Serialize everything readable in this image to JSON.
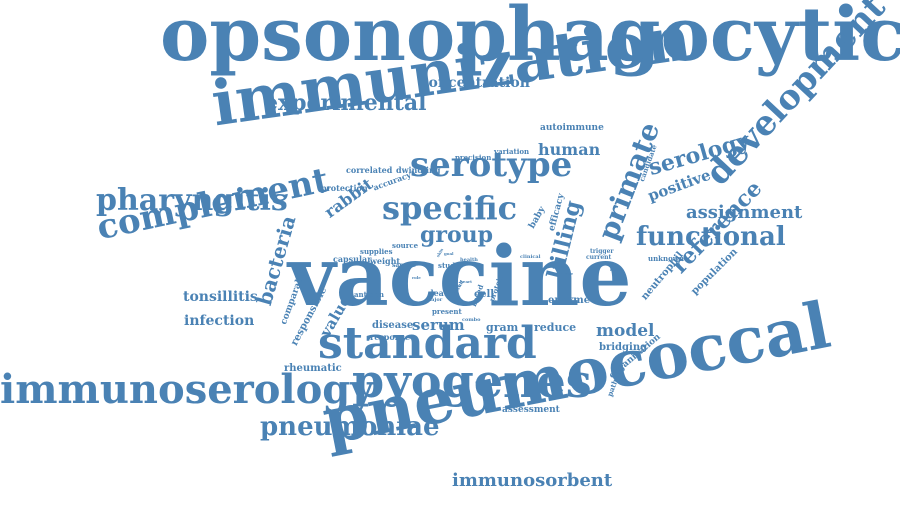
{
  "color": "#4a82b4",
  "words": [
    {
      "text": "opsonophagocytic"
    },
    {
      "text": "immunization"
    },
    {
      "text": "vaccine"
    },
    {
      "text": "pneumococcal"
    },
    {
      "text": "standard"
    },
    {
      "text": "pyogenes"
    },
    {
      "text": "immunoserology"
    },
    {
      "text": "development"
    },
    {
      "text": "complement"
    },
    {
      "text": "serotype"
    },
    {
      "text": "specific"
    },
    {
      "text": "pharyngitis"
    },
    {
      "text": "functional"
    },
    {
      "text": "primate"
    },
    {
      "text": "reference"
    },
    {
      "text": "pneumoniae"
    },
    {
      "text": "experimental"
    },
    {
      "text": "group"
    },
    {
      "text": "killing"
    },
    {
      "text": "serology"
    },
    {
      "text": "assignment"
    },
    {
      "text": "immunosorbent"
    },
    {
      "text": "bacteria"
    },
    {
      "text": "tonsillitis"
    },
    {
      "text": "infection"
    },
    {
      "text": "model"
    },
    {
      "text": "serum"
    },
    {
      "text": "positive"
    },
    {
      "text": "human"
    },
    {
      "text": "concentration"
    },
    {
      "text": "rabbit"
    },
    {
      "text": "value"
    },
    {
      "text": "rheumatic"
    },
    {
      "text": "enzyme"
    },
    {
      "text": "neutrophil"
    },
    {
      "text": "population"
    },
    {
      "text": "bridging"
    },
    {
      "text": "organization"
    },
    {
      "text": "assessment"
    },
    {
      "text": "gram"
    },
    {
      "text": "reduce"
    },
    {
      "text": "disease"
    },
    {
      "text": "response"
    },
    {
      "text": "responsible"
    },
    {
      "text": "comparable"
    },
    {
      "text": "autoimmune"
    },
    {
      "text": "variation"
    },
    {
      "text": "precision"
    },
    {
      "text": "correlated"
    },
    {
      "text": "dwindling"
    },
    {
      "text": "accuracy"
    },
    {
      "text": "protection"
    },
    {
      "text": "capsular"
    },
    {
      "text": "supplies"
    },
    {
      "text": "weight"
    },
    {
      "text": "source"
    },
    {
      "text": "sample"
    },
    {
      "text": "antigen"
    },
    {
      "text": "death"
    },
    {
      "text": "cell"
    },
    {
      "text": "study"
    },
    {
      "text": "based"
    },
    {
      "text": "present"
    },
    {
      "text": "protein"
    },
    {
      "text": "efficacy"
    },
    {
      "text": "baby"
    },
    {
      "text": "clinical"
    },
    {
      "text": "health"
    },
    {
      "text": "current"
    },
    {
      "text": "trigger"
    },
    {
      "text": "unknown"
    },
    {
      "text": "candidate"
    },
    {
      "text": "pathogen"
    },
    {
      "text": "combo"
    },
    {
      "text": "major"
    },
    {
      "text": "result"
    },
    {
      "text": "heart"
    },
    {
      "text": "fever"
    },
    {
      "text": "skin"
    },
    {
      "text": "goal"
    },
    {
      "text": "role"
    },
    {
      "text": "test"
    },
    {
      "text": "rate"
    },
    {
      "text": "field"
    },
    {
      "text": "host"
    }
  ]
}
